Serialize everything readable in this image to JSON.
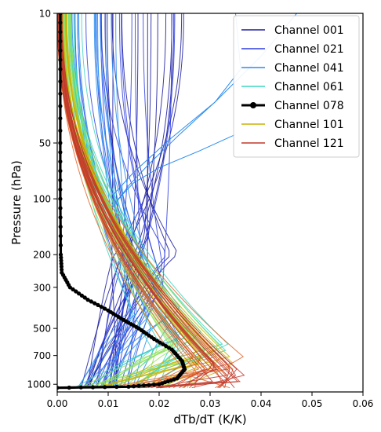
{
  "chart_data": {
    "type": "line",
    "xlabel": "dTb/dT (K/K)",
    "ylabel": "Pressure (hPa)",
    "xlim": [
      0.0,
      0.06
    ],
    "ylim": [
      1100,
      10
    ],
    "yscale": "log",
    "x_ticks": [
      "0.00",
      "0.01",
      "0.02",
      "0.03",
      "0.04",
      "0.05",
      "0.06"
    ],
    "x_tick_values": [
      0,
      0.01,
      0.02,
      0.03,
      0.04,
      0.05,
      0.06
    ],
    "y_ticks": [
      "10",
      "50",
      "100",
      "200",
      "300",
      "500",
      "700",
      "1000"
    ],
    "y_tick_values": [
      10,
      50,
      100,
      200,
      300,
      500,
      700,
      1000
    ],
    "grid": false,
    "legend_position": "top-right",
    "legend": [
      {
        "name": "Channel 001",
        "color": "#1a1a9e",
        "marker": false
      },
      {
        "name": "Channel 021",
        "color": "#2f3fe0",
        "marker": false
      },
      {
        "name": "Channel 041",
        "color": "#2a8cf0",
        "marker": false
      },
      {
        "name": "Channel 061",
        "color": "#3fd6c2",
        "marker": false
      },
      {
        "name": "Channel 078",
        "color": "#000000",
        "marker": true
      },
      {
        "name": "Channel 101",
        "color": "#c8b400",
        "marker": false
      },
      {
        "name": "Channel 121",
        "color": "#c0392b",
        "marker": false
      }
    ],
    "highlight_series": {
      "name": "Channel 078",
      "color": "#000000",
      "points": [
        [
          0.0006,
          10
        ],
        [
          0.0006,
          20
        ],
        [
          0.0006,
          50
        ],
        [
          0.0006,
          100
        ],
        [
          0.0007,
          200
        ],
        [
          0.0009,
          250
        ],
        [
          0.0025,
          300
        ],
        [
          0.006,
          350
        ],
        [
          0.01,
          400
        ],
        [
          0.013,
          450
        ],
        [
          0.016,
          500
        ],
        [
          0.019,
          570
        ],
        [
          0.0225,
          650
        ],
        [
          0.0245,
          750
        ],
        [
          0.025,
          830
        ],
        [
          0.0235,
          930
        ],
        [
          0.02,
          1000
        ],
        [
          0.014,
          1030
        ],
        [
          0.0,
          1045
        ]
      ]
    },
    "channel_groups": [
      {
        "color": "#1a1a9e",
        "count": 14,
        "x_top": [
          0.006,
          0.034
        ],
        "x_peak": [
          0.01,
          0.024
        ],
        "p_peak": [
          150,
          260
        ],
        "x_bottom": [
          0.004,
          0.012
        ]
      },
      {
        "color": "#2f3fe0",
        "count": 14,
        "x_top": [
          0.003,
          0.024
        ],
        "x_peak": [
          0.012,
          0.022
        ],
        "p_peak": [
          200,
          350
        ],
        "x_bottom": [
          0.004,
          0.014
        ]
      },
      {
        "color": "#2a8cf0",
        "count": 12,
        "x_top": [
          0.002,
          0.014
        ],
        "x_peak": [
          0.014,
          0.026
        ],
        "p_peak": [
          380,
          600
        ],
        "x_bottom": [
          0.004,
          0.016
        ]
      },
      {
        "color": "#3fd6c2",
        "count": 14,
        "x_top": [
          0.0,
          0.005
        ],
        "x_peak": [
          0.018,
          0.034
        ],
        "p_peak": [
          480,
          700
        ],
        "x_bottom": [
          0.003,
          0.02
        ]
      },
      {
        "color": "#8fe05a",
        "count": 12,
        "x_top": [
          0.0,
          0.003
        ],
        "x_peak": [
          0.02,
          0.033
        ],
        "p_peak": [
          560,
          760
        ],
        "x_bottom": [
          0.004,
          0.022
        ]
      },
      {
        "color": "#c8b400",
        "count": 12,
        "x_top": [
          0.0,
          0.002
        ],
        "x_peak": [
          0.024,
          0.036
        ],
        "p_peak": [
          640,
          850
        ],
        "x_bottom": [
          0.006,
          0.026
        ]
      },
      {
        "color": "#e0642a",
        "count": 14,
        "x_top": [
          0.0,
          0.001
        ],
        "x_peak": [
          0.026,
          0.038
        ],
        "p_peak": [
          720,
          960
        ],
        "x_bottom": [
          0.01,
          0.034
        ]
      },
      {
        "color": "#c0392b",
        "count": 14,
        "x_top": [
          0.0,
          0.001
        ],
        "x_peak": [
          0.028,
          0.039
        ],
        "p_peak": [
          800,
          1040
        ],
        "x_bottom": [
          0.014,
          0.038
        ]
      }
    ],
    "outlier_curves": [
      {
        "color": "#2a8cf0",
        "points": [
          [
            0.035,
            10
          ],
          [
            0.036,
            20
          ],
          [
            0.031,
            30
          ],
          [
            0.024,
            45
          ],
          [
            0.018,
            65
          ],
          [
            0.014,
            85
          ],
          [
            0.011,
            110
          ]
        ]
      },
      {
        "color": "#2a8cf0",
        "points": [
          [
            0.047,
            10
          ],
          [
            0.04,
            17
          ],
          [
            0.031,
            30
          ],
          [
            0.022,
            48
          ],
          [
            0.015,
            72
          ],
          [
            0.011,
            95
          ]
        ]
      },
      {
        "color": "#2a8cf0",
        "points": [
          [
            0.035,
            45
          ],
          [
            0.028,
            55
          ],
          [
            0.02,
            68
          ],
          [
            0.015,
            82
          ],
          [
            0.012,
            100
          ]
        ]
      }
    ]
  }
}
